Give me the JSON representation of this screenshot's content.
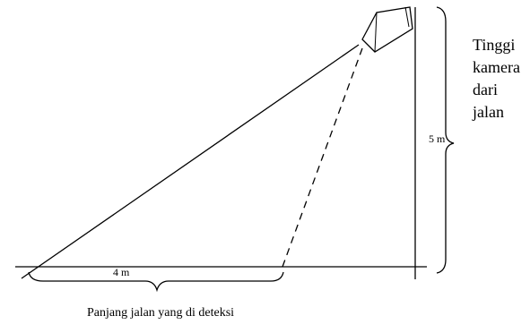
{
  "labels": {
    "height": "5 m",
    "base": "4 m",
    "bottom_caption": "Panjang jalan yang di deteksi",
    "side_caption_lines": [
      "Tinggi",
      "kamera",
      "dari",
      "jalan"
    ]
  },
  "colors": {
    "stroke": "#000000",
    "background": "#ffffff"
  },
  "icons": {
    "camera": "camera-icon"
  }
}
